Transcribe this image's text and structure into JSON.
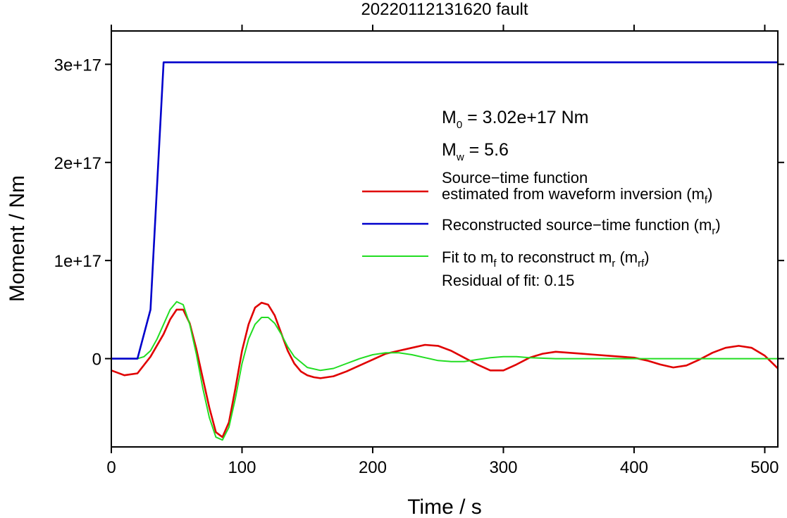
{
  "chart_data": {
    "type": "line",
    "title": "20220112131620 fault",
    "xlabel": "Time / s",
    "ylabel": "Moment / Nm",
    "xlim": [
      0,
      510
    ],
    "ylim": [
      -9e+16,
      3.34e+17
    ],
    "x_ticks": [
      0,
      100,
      200,
      300,
      400,
      500
    ],
    "x_tick_labels": [
      "0",
      "100",
      "200",
      "300",
      "400",
      "500"
    ],
    "y_ticks": [
      0,
      1e+17,
      2e+17,
      3e+17
    ],
    "y_tick_labels": [
      "0",
      "1e+17",
      "2e+17",
      "3e+17"
    ],
    "grid": false,
    "legend_position": "right",
    "annotations": {
      "m0": {
        "symbol": "M",
        "subscript": "0",
        "text": " = 3.02e+17 Nm"
      },
      "mw": {
        "symbol": "M",
        "subscript": "w",
        "text": " = 5.6"
      },
      "residual": "Residual of fit: 0.15"
    },
    "series": [
      {
        "id": "mf",
        "color": "#e00000",
        "legend_lines": [
          [
            {
              "t": "Source−time function"
            }
          ],
          [
            {
              "t": "estimated from waveform inversion (m"
            },
            {
              "t": "f",
              "sub": true
            },
            {
              "t": ")"
            }
          ]
        ],
        "x": [
          0,
          10,
          20,
          30,
          40,
          45,
          50,
          55,
          60,
          65,
          70,
          75,
          80,
          85,
          90,
          95,
          100,
          105,
          110,
          115,
          120,
          125,
          130,
          135,
          140,
          145,
          150,
          155,
          160,
          170,
          180,
          190,
          200,
          210,
          220,
          230,
          240,
          250,
          260,
          270,
          280,
          290,
          300,
          310,
          320,
          330,
          340,
          350,
          360,
          370,
          380,
          390,
          400,
          410,
          420,
          430,
          440,
          450,
          460,
          470,
          480,
          490,
          500,
          510
        ],
        "y": [
          -1.2e+16,
          -1.7e+16,
          -1.5e+16,
          2000000000000000.0,
          2.5e+16,
          4e+16,
          5e+16,
          5e+16,
          3.6e+16,
          1e+16,
          -2e+16,
          -5e+16,
          -7.5e+16,
          -8e+16,
          -6.5e+16,
          -3e+16,
          8000000000000000.0,
          3.5e+16,
          5.2e+16,
          5.7e+16,
          5.5e+16,
          4.4e+16,
          2.6e+16,
          8000000000000000.0,
          -5000000000000000.0,
          -1.3e+16,
          -1.7e+16,
          -1.9e+16,
          -2e+16,
          -1.8e+16,
          -1.3e+16,
          -7000000000000000.0,
          -1000000000000000.0,
          5000000000000000.0,
          8000000000000000.0,
          1.1e+16,
          1.4e+16,
          1.3e+16,
          8000000000000000.0,
          1000000000000000.0,
          -6000000000000000.0,
          -1.2e+16,
          -1.2e+16,
          -6000000000000000.0,
          1000000000000000.0,
          5000000000000000.0,
          7000000000000000.0,
          6000000000000000.0,
          5000000000000000.0,
          4000000000000000.0,
          3000000000000000.0,
          2000000000000000.0,
          1000000000000000.0,
          -2000000000000000.0,
          -6000000000000000.0,
          -9000000000000000.0,
          -7000000000000000.0,
          -1000000000000000.0,
          6000000000000000.0,
          1.1e+16,
          1.3e+16,
          1.1e+16,
          3000000000000000.0,
          -1e+16
        ]
      },
      {
        "id": "mr",
        "color": "#0000cc",
        "legend_lines": [
          [
            {
              "t": "Reconstructed source−time function (m"
            },
            {
              "t": "r",
              "sub": true
            },
            {
              "t": ")"
            }
          ]
        ],
        "x": [
          0,
          20,
          30,
          40,
          510
        ],
        "y": [
          0,
          0,
          5e+16,
          3.02e+17,
          3.02e+17
        ]
      },
      {
        "id": "mrf",
        "color": "#22dd22",
        "legend_lines": [
          [
            {
              "t": "Fit to m"
            },
            {
              "t": "f",
              "sub": true
            },
            {
              "t": " to reconstruct m"
            },
            {
              "t": "r",
              "sub": true
            },
            {
              "t": " (m"
            },
            {
              "t": "rf",
              "sub": true
            },
            {
              "t": ")"
            }
          ]
        ],
        "x": [
          0,
          20,
          25,
          30,
          35,
          40,
          45,
          50,
          55,
          60,
          65,
          70,
          75,
          80,
          85,
          90,
          95,
          100,
          105,
          110,
          115,
          120,
          125,
          130,
          135,
          140,
          150,
          160,
          170,
          180,
          190,
          200,
          210,
          220,
          230,
          240,
          250,
          260,
          270,
          280,
          290,
          300,
          310,
          320,
          340,
          360,
          380,
          400,
          450,
          510
        ],
        "y": [
          0,
          0,
          2000000000000000.0,
          8000000000000000.0,
          2e+16,
          3.5e+16,
          5e+16,
          5.8e+16,
          5.5e+16,
          3.5e+16,
          5000000000000000.0,
          -3e+16,
          -6e+16,
          -8e+16,
          -8.3e+16,
          -7e+16,
          -4e+16,
          -5000000000000000.0,
          2e+16,
          3.5e+16,
          4.2e+16,
          4.2e+16,
          3.6e+16,
          2.5e+16,
          1.2e+16,
          2000000000000000.0,
          -9000000000000000.0,
          -1.2e+16,
          -1e+16,
          -5000000000000000.0,
          0,
          4000000000000000.0,
          6000000000000000.0,
          6000000000000000.0,
          4000000000000000.0,
          1000000000000000.0,
          -2000000000000000.0,
          -3000000000000000.0,
          -3000000000000000.0,
          -1000000000000000.0,
          1000000000000000.0,
          2000000000000000.0,
          2000000000000000.0,
          1000000000000000.0,
          0,
          0,
          0,
          0,
          0,
          0
        ]
      }
    ]
  }
}
